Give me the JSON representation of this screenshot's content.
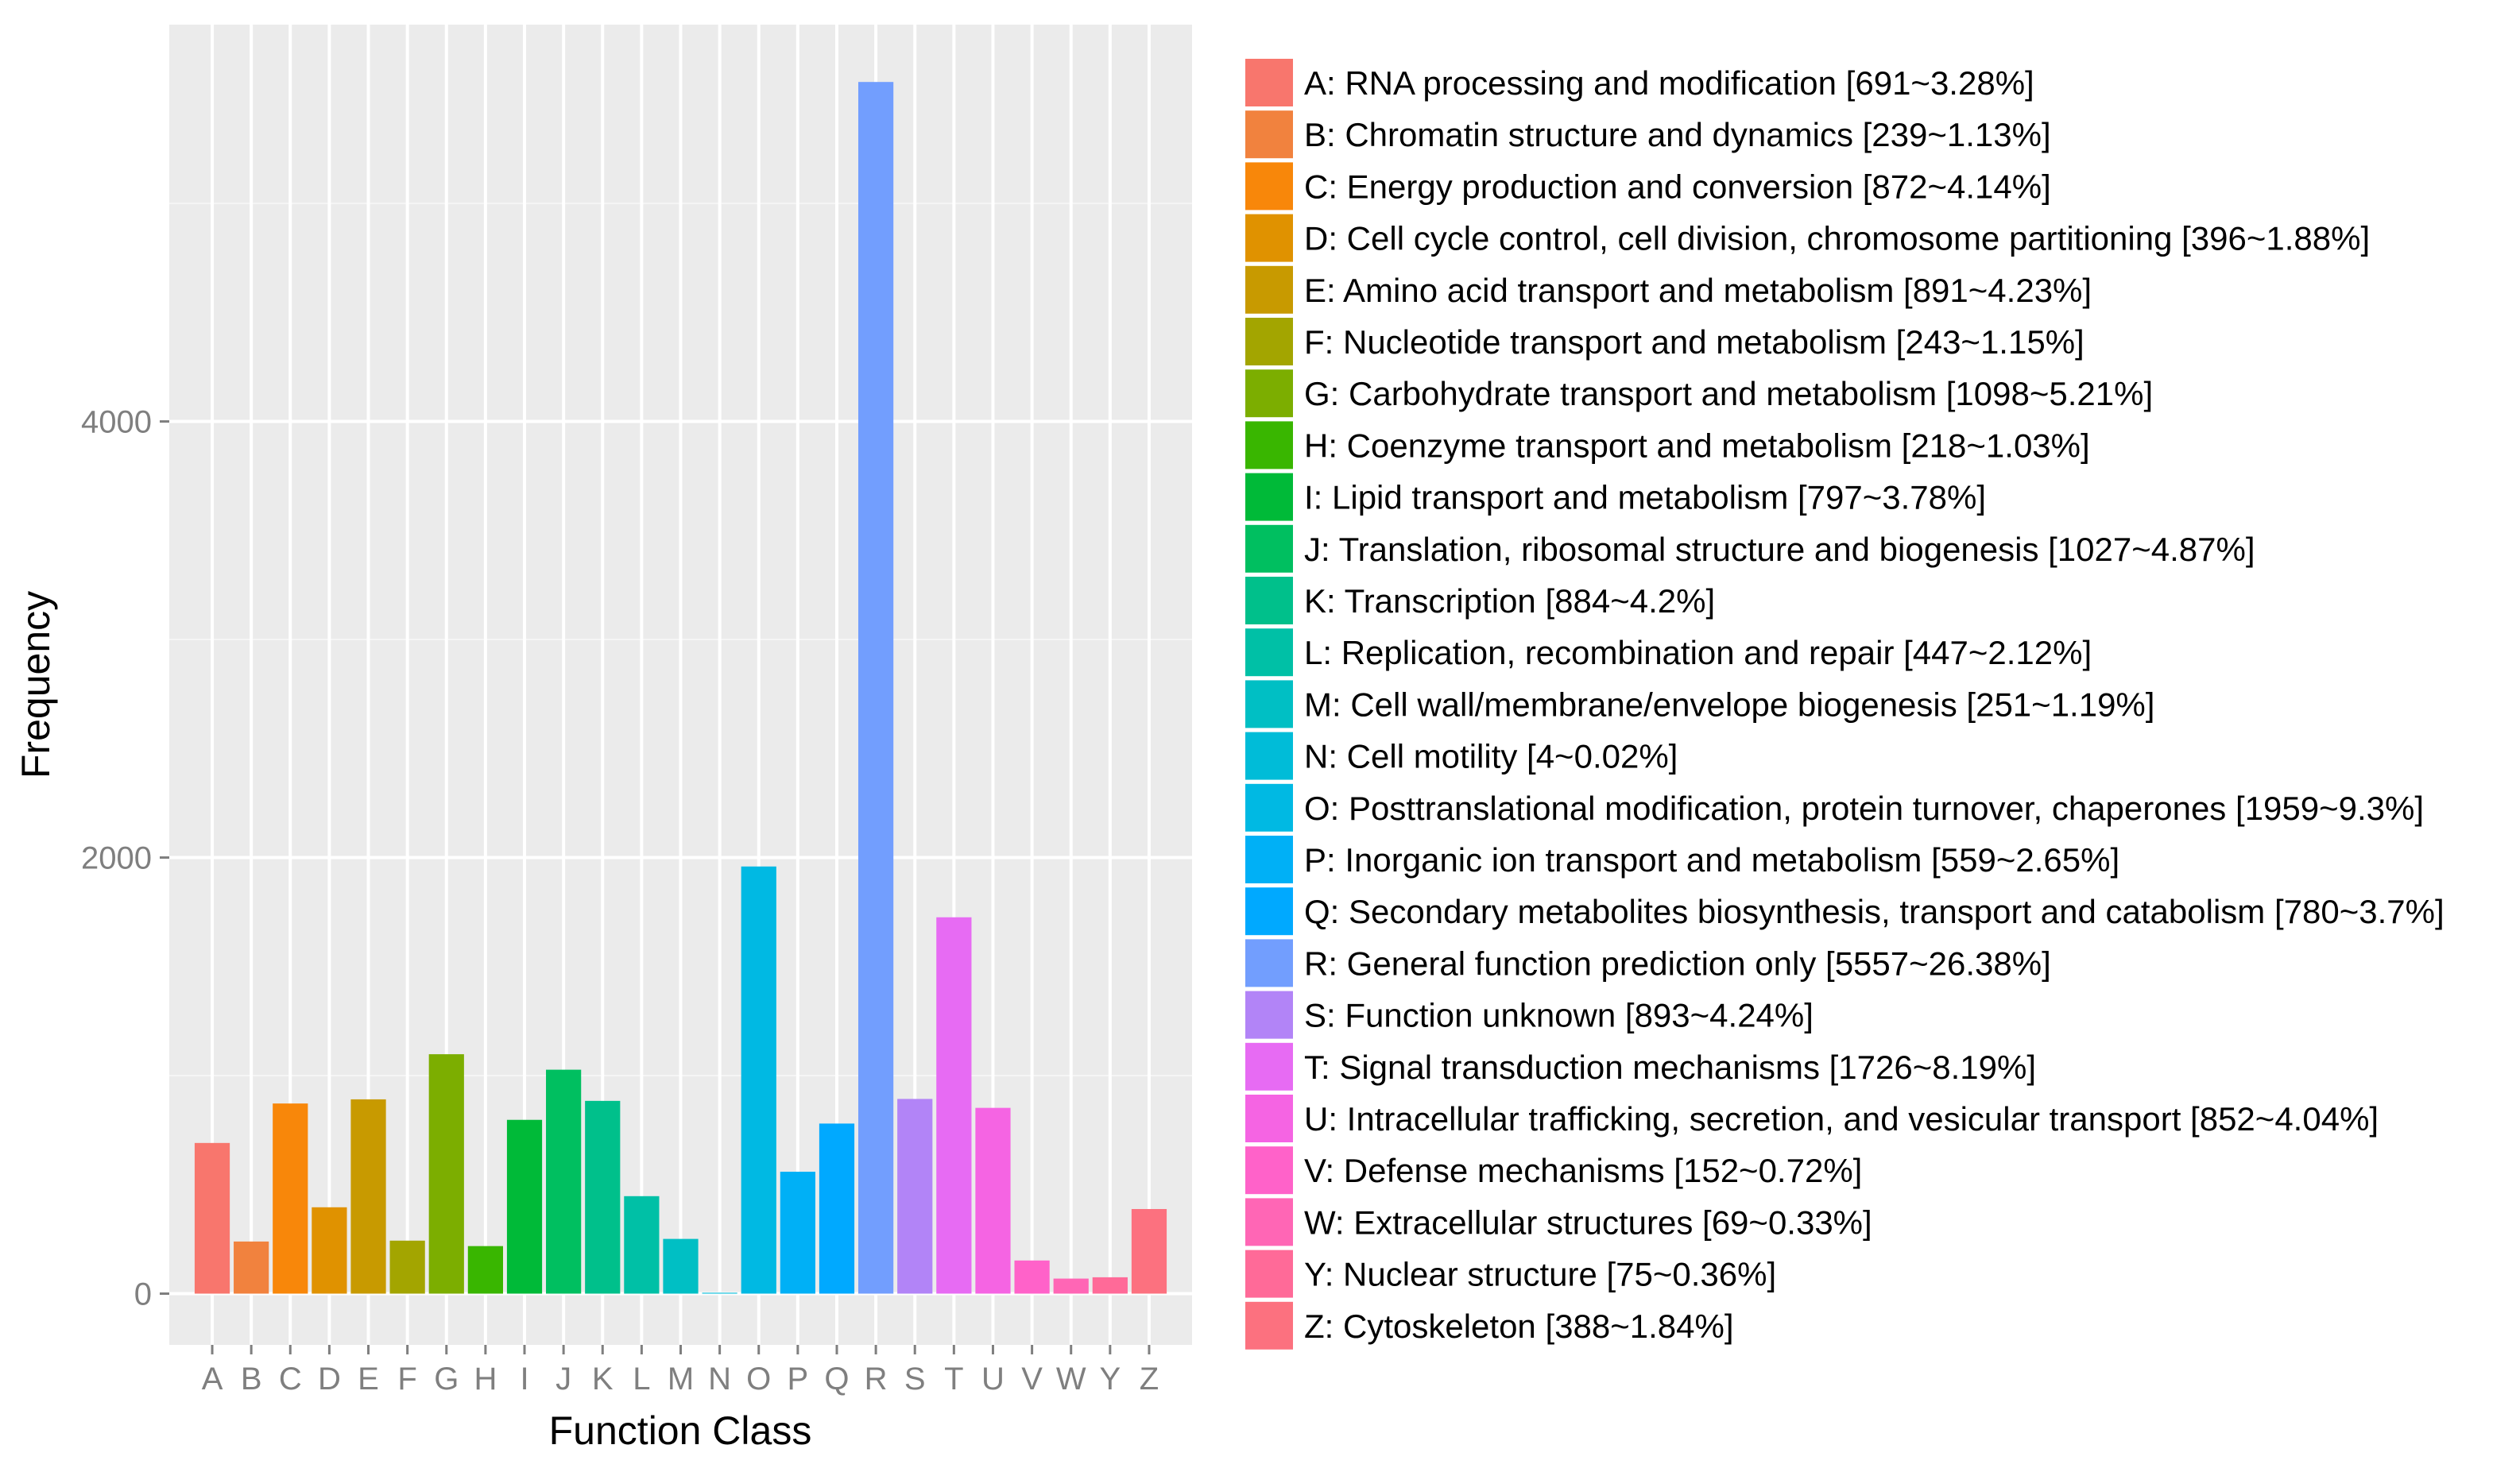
{
  "chart_data": {
    "type": "bar",
    "xlabel": "Function Class",
    "ylabel": "Frequency",
    "ylim": [
      -235,
      5820
    ],
    "y_ticks": [
      0,
      2000,
      4000
    ],
    "y_tick_labels": [
      "0",
      "2000",
      "4000"
    ],
    "grid": true,
    "legend_position": "right",
    "categories": [
      "A",
      "B",
      "C",
      "D",
      "E",
      "F",
      "G",
      "H",
      "I",
      "J",
      "K",
      "L",
      "M",
      "N",
      "O",
      "P",
      "Q",
      "R",
      "S",
      "T",
      "U",
      "V",
      "W",
      "Y",
      "Z"
    ],
    "values": [
      691,
      239,
      872,
      396,
      891,
      243,
      1098,
      218,
      797,
      1027,
      884,
      447,
      251,
      4,
      1959,
      559,
      780,
      5557,
      893,
      1726,
      852,
      152,
      69,
      75,
      388
    ],
    "colors": [
      "#F8766D",
      "#F1823E",
      "#F8870A",
      "#E09200",
      "#C89A00",
      "#A3A500",
      "#7CAE00",
      "#39B600",
      "#00BA38",
      "#00BF60",
      "#00C08B",
      "#00C0A6",
      "#00BFC4",
      "#00BCD8",
      "#00B9E3",
      "#00B0F6",
      "#00A9FF",
      "#729EFE",
      "#B284F7",
      "#E76BF3",
      "#F564E3",
      "#FF62C9",
      "#FF66B5",
      "#FF6A98",
      "#FC717F"
    ],
    "legend": [
      "A: RNA processing and modification [691~3.28%]",
      "B: Chromatin structure and dynamics [239~1.13%]",
      "C: Energy production and conversion [872~4.14%]",
      "D: Cell cycle control, cell division, chromosome partitioning [396~1.88%]",
      "E: Amino acid transport and metabolism [891~4.23%]",
      "F: Nucleotide transport and metabolism [243~1.15%]",
      "G: Carbohydrate transport and metabolism [1098~5.21%]",
      "H: Coenzyme transport and metabolism [218~1.03%]",
      "I: Lipid transport and metabolism [797~3.78%]",
      "J: Translation, ribosomal structure and biogenesis [1027~4.87%]",
      "K: Transcription [884~4.2%]",
      "L: Replication, recombination and repair [447~2.12%]",
      "M: Cell wall/membrane/envelope biogenesis [251~1.19%]",
      "N: Cell motility [4~0.02%]",
      "O: Posttranslational modification, protein turnover, chaperones [1959~9.3%]",
      "P: Inorganic ion transport and metabolism [559~2.65%]",
      "Q: Secondary metabolites biosynthesis, transport and catabolism [780~3.7%]",
      "R: General function prediction only [5557~26.38%]",
      "S: Function unknown [893~4.24%]",
      "T: Signal transduction mechanisms [1726~8.19%]",
      "U: Intracellular trafficking, secretion, and vesicular transport [852~4.04%]",
      "V: Defense mechanisms [152~0.72%]",
      "W: Extracellular structures [69~0.33%]",
      "Y: Nuclear structure [75~0.36%]",
      "Z: Cytoskeleton [388~1.84%]"
    ]
  }
}
